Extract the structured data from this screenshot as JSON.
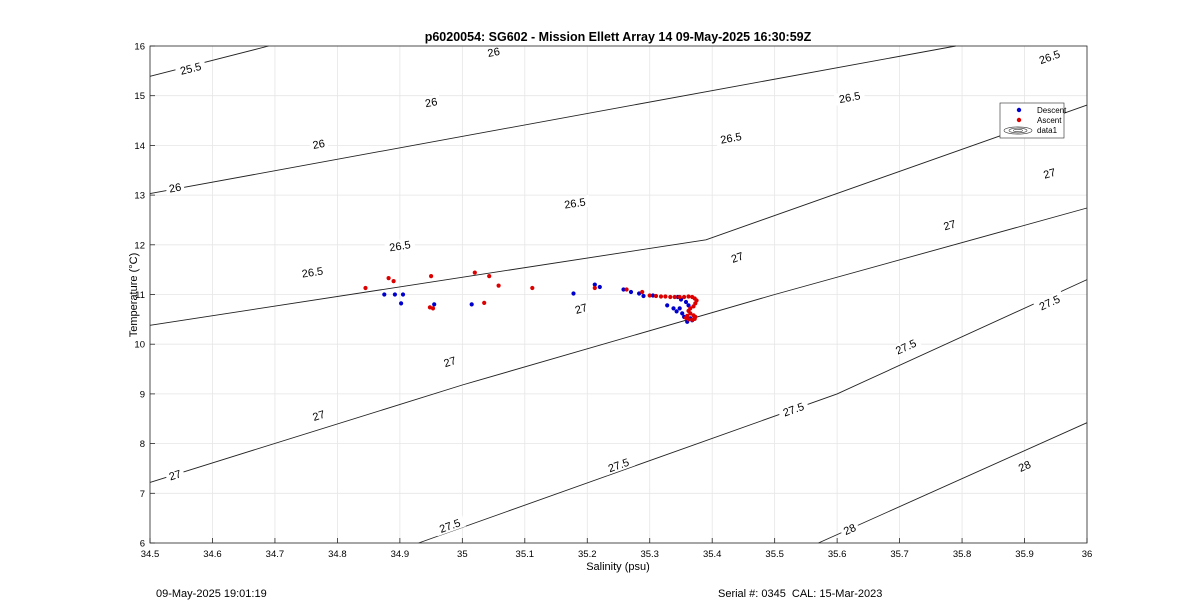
{
  "chart_data": {
    "type": "scatter",
    "title": "p6020054: SG602 - Mission Ellett Array 14 09-May-2025 16:30:59Z",
    "xlabel": "Salinity (psu)",
    "ylabel": "Temperature (°C)",
    "xlim": [
      34.5,
      36
    ],
    "ylim": [
      6,
      16
    ],
    "xticks": [
      34.5,
      34.6,
      34.7,
      34.8,
      34.9,
      35,
      35.1,
      35.2,
      35.3,
      35.4,
      35.5,
      35.6,
      35.7,
      35.8,
      35.9,
      36
    ],
    "xtick_labels": [
      "34.5",
      "34.6",
      "34.7",
      "34.8",
      "34.9",
      "35",
      "35.1",
      "35.2",
      "35.3",
      "35.4",
      "35.5",
      "35.6",
      "35.7",
      "35.8",
      "35.9",
      "36"
    ],
    "yticks": [
      6,
      7,
      8,
      9,
      10,
      11,
      12,
      13,
      14,
      15,
      16
    ],
    "ytick_labels": [
      "6",
      "7",
      "8",
      "9",
      "10",
      "11",
      "12",
      "13",
      "14",
      "15",
      "16"
    ],
    "grid": true,
    "legend_position": "top-right",
    "legend": [
      "Descent",
      "Ascent",
      "data1"
    ],
    "series": [
      {
        "name": "Descent",
        "color": "#0000cc",
        "points": [
          [
            34.875,
            11.0
          ],
          [
            34.892,
            11.0
          ],
          [
            34.902,
            10.82
          ],
          [
            34.905,
            11.0
          ],
          [
            34.955,
            10.8
          ],
          [
            35.015,
            10.8
          ],
          [
            35.178,
            11.02
          ],
          [
            35.212,
            11.2
          ],
          [
            35.22,
            11.15
          ],
          [
            35.258,
            11.1
          ],
          [
            35.27,
            11.05
          ],
          [
            35.283,
            11.02
          ],
          [
            35.29,
            10.97
          ],
          [
            35.305,
            10.98
          ],
          [
            35.328,
            10.78
          ],
          [
            35.338,
            10.72
          ],
          [
            35.343,
            10.66
          ],
          [
            35.348,
            10.72
          ],
          [
            35.35,
            10.9
          ],
          [
            35.352,
            10.62
          ],
          [
            35.355,
            10.55
          ],
          [
            35.358,
            10.85
          ],
          [
            35.36,
            10.45
          ],
          [
            35.362,
            10.78
          ],
          [
            35.365,
            10.52
          ],
          [
            35.368,
            10.48
          ],
          [
            35.345,
            10.95
          ]
        ]
      },
      {
        "name": "Ascent",
        "color": "#dd0000",
        "points": [
          [
            34.845,
            11.13
          ],
          [
            34.882,
            11.33
          ],
          [
            34.89,
            11.27
          ],
          [
            34.948,
            10.74
          ],
          [
            34.95,
            11.37
          ],
          [
            34.953,
            10.72
          ],
          [
            35.02,
            11.44
          ],
          [
            35.035,
            10.83
          ],
          [
            35.043,
            11.37
          ],
          [
            35.058,
            11.18
          ],
          [
            35.112,
            11.13
          ],
          [
            35.212,
            11.13
          ],
          [
            35.263,
            11.1
          ],
          [
            35.288,
            11.05
          ],
          [
            35.3,
            10.98
          ],
          [
            35.31,
            10.97
          ],
          [
            35.318,
            10.96
          ],
          [
            35.325,
            10.96
          ],
          [
            35.333,
            10.95
          ],
          [
            35.34,
            10.95
          ],
          [
            35.348,
            10.95
          ],
          [
            35.355,
            10.95
          ],
          [
            35.362,
            10.96
          ],
          [
            35.368,
            10.95
          ],
          [
            35.372,
            10.92
          ],
          [
            35.375,
            10.88
          ],
          [
            35.373,
            10.82
          ],
          [
            35.37,
            10.76
          ],
          [
            35.365,
            10.72
          ],
          [
            35.362,
            10.67
          ],
          [
            35.365,
            10.62
          ],
          [
            35.37,
            10.58
          ],
          [
            35.373,
            10.55
          ],
          [
            35.372,
            10.51
          ],
          [
            35.368,
            10.49
          ],
          [
            35.362,
            10.5
          ],
          [
            35.358,
            10.53
          ],
          [
            35.36,
            10.57
          ]
        ]
      }
    ],
    "contours": [
      {
        "label": "25.5",
        "points": [
          [
            34.5,
            15.39
          ],
          [
            34.69,
            16.0
          ]
        ]
      },
      {
        "label": "26",
        "points": [
          [
            34.5,
            13.03
          ],
          [
            35.79,
            16.0
          ]
        ]
      },
      {
        "label": "26.5",
        "points": [
          [
            34.5,
            10.38
          ],
          [
            35.39,
            12.1
          ],
          [
            36.0,
            14.81
          ]
        ]
      },
      {
        "label": "27",
        "points": [
          [
            34.5,
            7.22
          ],
          [
            35.0,
            9.18
          ],
          [
            35.5,
            11.0
          ],
          [
            36.0,
            12.74
          ]
        ]
      },
      {
        "label": "27.5",
        "points": [
          [
            34.93,
            6.0
          ],
          [
            35.6,
            9.0
          ],
          [
            36.0,
            11.3
          ]
        ]
      },
      {
        "label": "28",
        "points": [
          [
            35.57,
            6.0
          ],
          [
            36.0,
            8.42
          ]
        ]
      }
    ],
    "contour_labels": [
      {
        "text": "25.5",
        "x": 34.565,
        "y": 15.55
      },
      {
        "text": "26",
        "x": 35.05,
        "y": 15.88
      },
      {
        "text": "26.5",
        "x": 35.94,
        "y": 15.78
      },
      {
        "text": "26",
        "x": 34.95,
        "y": 14.87
      },
      {
        "text": "26.5",
        "x": 35.62,
        "y": 14.97
      },
      {
        "text": "26",
        "x": 34.77,
        "y": 14.03
      },
      {
        "text": "26.5",
        "x": 35.43,
        "y": 14.15
      },
      {
        "text": "27",
        "x": 35.94,
        "y": 13.44
      },
      {
        "text": "26",
        "x": 34.54,
        "y": 13.15
      },
      {
        "text": "26.5",
        "x": 35.18,
        "y": 12.84
      },
      {
        "text": "27",
        "x": 35.78,
        "y": 12.4
      },
      {
        "text": "26.5",
        "x": 34.9,
        "y": 11.98
      },
      {
        "text": "27",
        "x": 35.44,
        "y": 11.75
      },
      {
        "text": "26.5",
        "x": 34.76,
        "y": 11.45
      },
      {
        "text": "27",
        "x": 35.19,
        "y": 10.72
      },
      {
        "text": "27.5",
        "x": 35.94,
        "y": 10.84
      },
      {
        "text": "27",
        "x": 34.98,
        "y": 9.65
      },
      {
        "text": "27.5",
        "x": 35.71,
        "y": 9.95
      },
      {
        "text": "27",
        "x": 34.77,
        "y": 8.57
      },
      {
        "text": "27.5",
        "x": 35.53,
        "y": 8.69
      },
      {
        "text": "27",
        "x": 34.54,
        "y": 7.37
      },
      {
        "text": "27.5",
        "x": 35.25,
        "y": 7.57
      },
      {
        "text": "28",
        "x": 35.9,
        "y": 7.55
      },
      {
        "text": "27.5",
        "x": 34.98,
        "y": 6.35
      },
      {
        "text": "28",
        "x": 35.62,
        "y": 6.28
      }
    ]
  },
  "footer": {
    "timestamp": "09-May-2025 19:01:19",
    "serial": "Serial #: 0345",
    "cal": "CAL: 15-Mar-2023"
  }
}
